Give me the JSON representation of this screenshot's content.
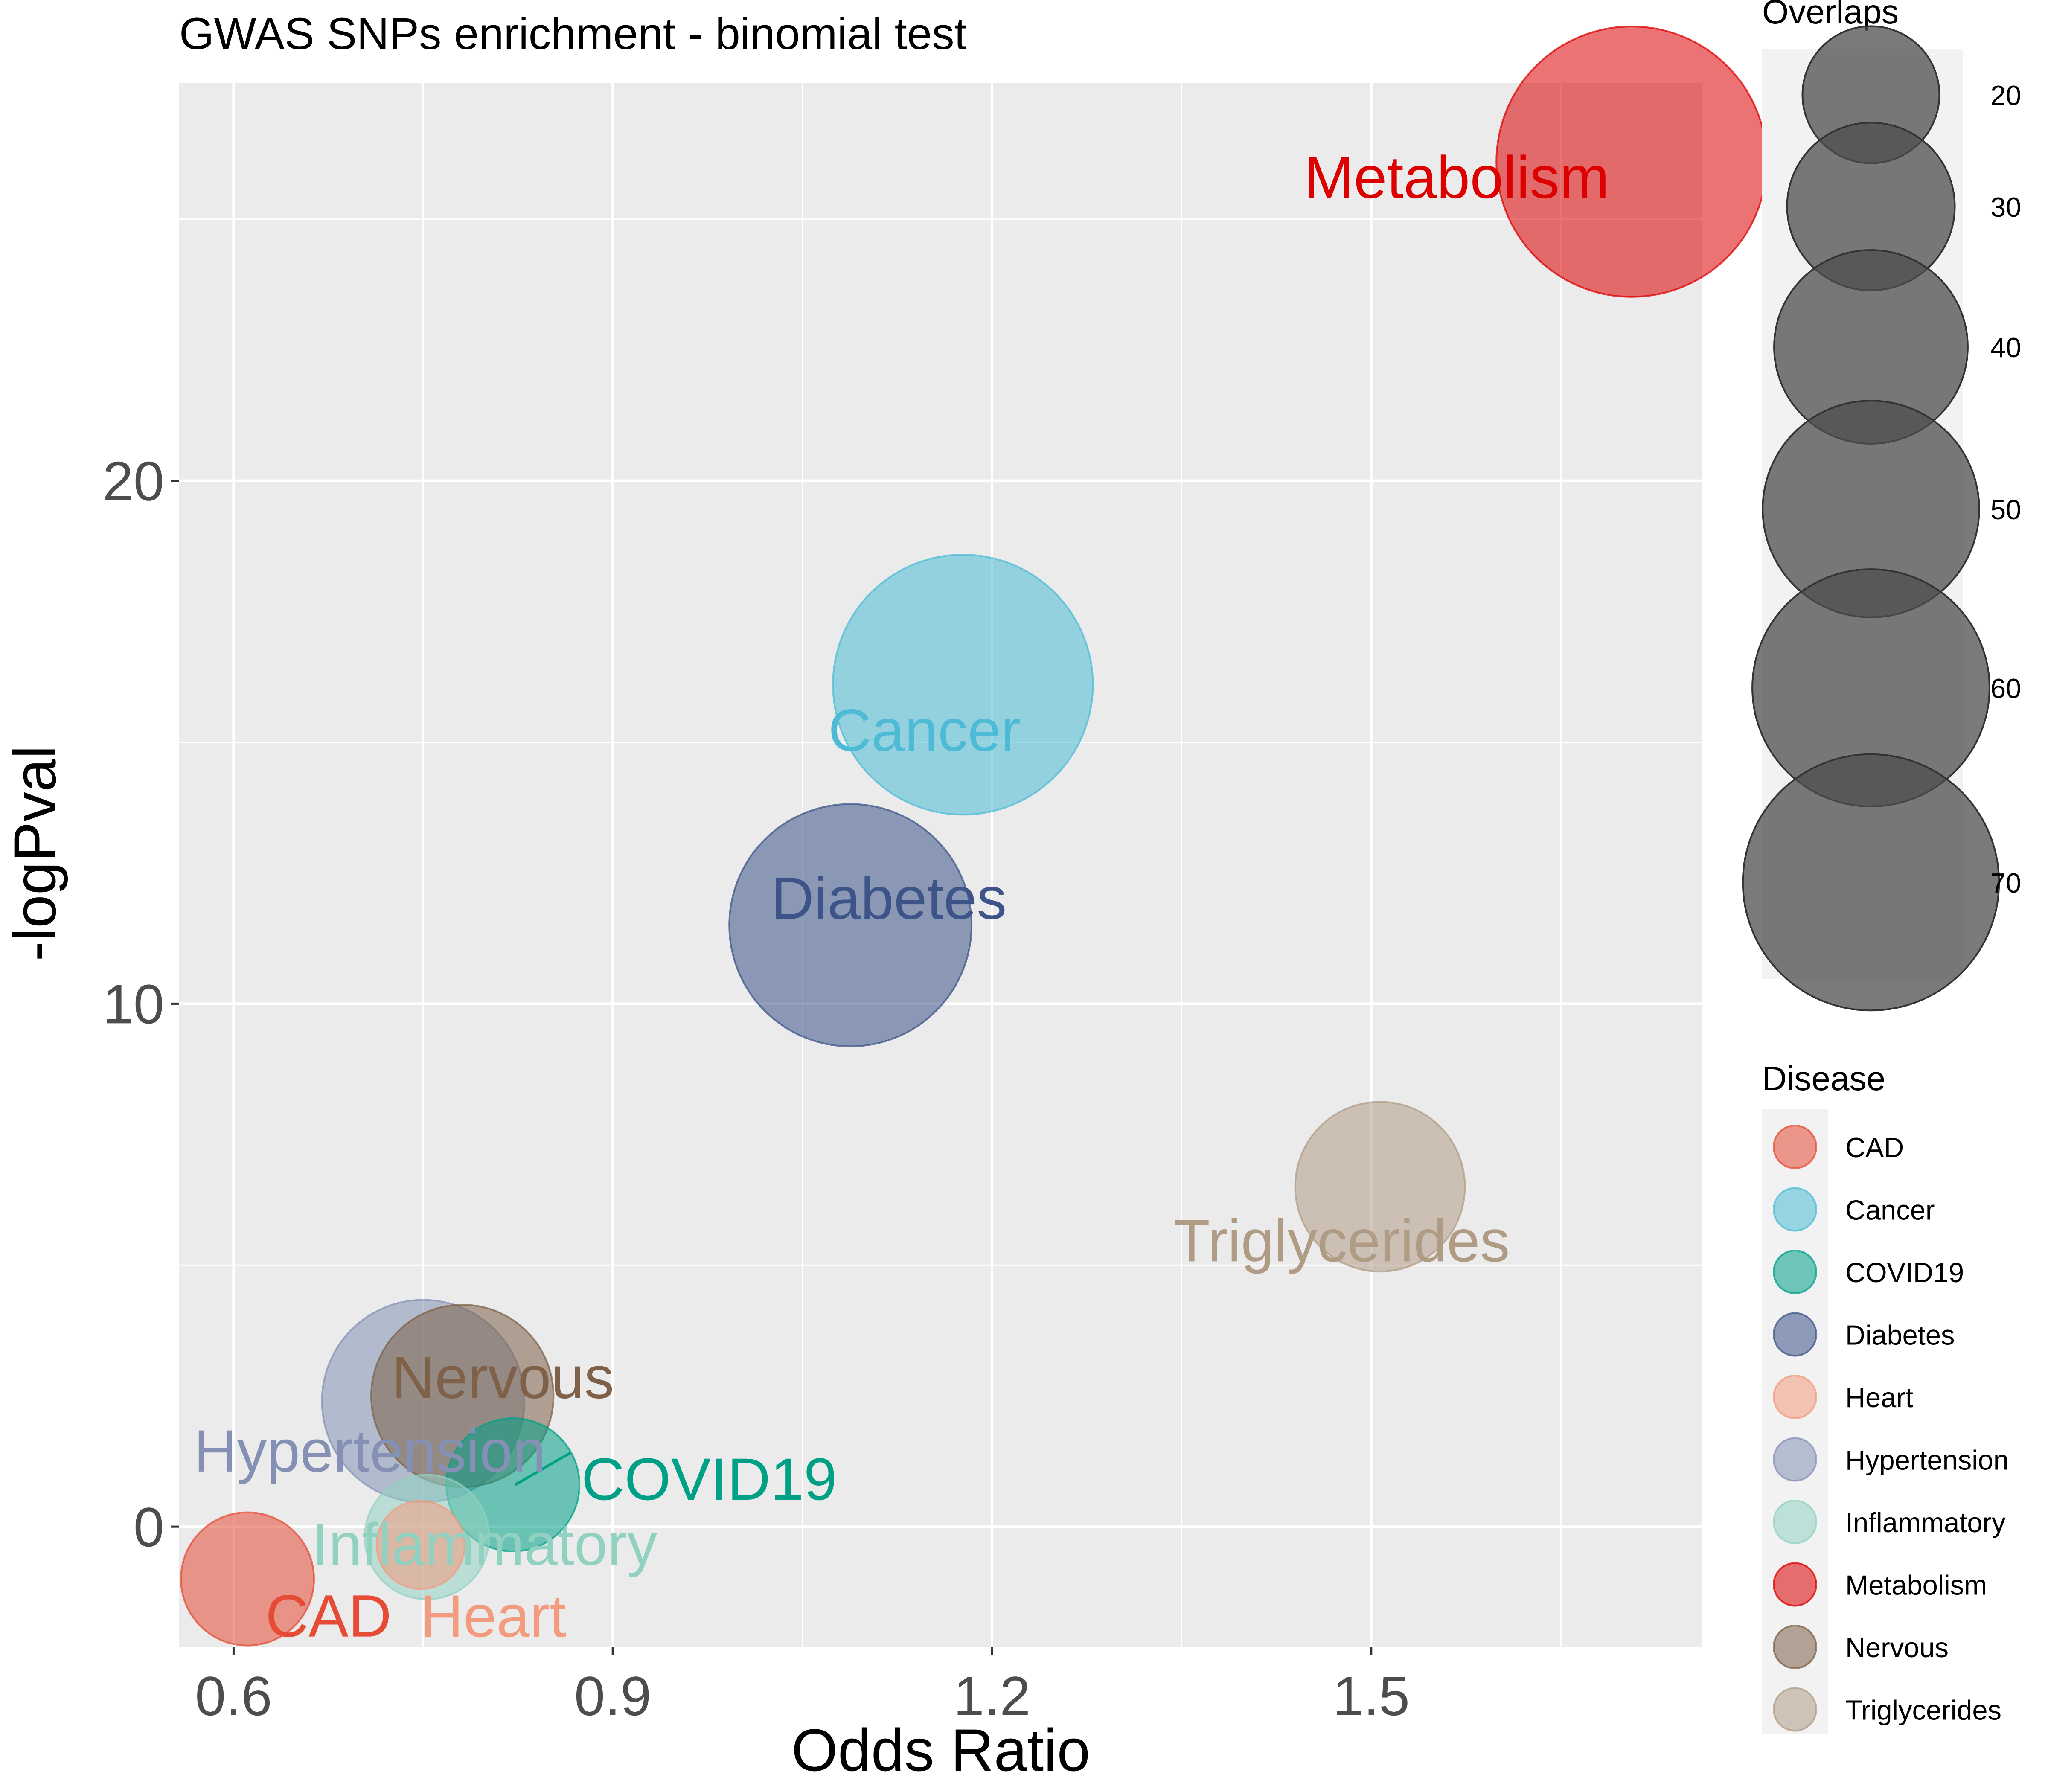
{
  "chart_data": {
    "type": "scatter",
    "title": "GWAS SNPs enrichment - binomial test",
    "xlabel": "Odds Ratio",
    "ylabel": "-logPval",
    "xlim": [
      0.557,
      1.762
    ],
    "ylim": [
      -2.3,
      27.6
    ],
    "x_ticks": [
      0.6,
      0.9,
      1.2,
      1.5
    ],
    "x_tick_labels": [
      "0.6",
      "0.9",
      "1.2",
      "1.5"
    ],
    "y_ticks": [
      0,
      10,
      20
    ],
    "y_tick_labels": [
      "0",
      "10",
      "20"
    ],
    "grid": true,
    "size_legend": {
      "title": "Overlaps",
      "sizes": [
        20,
        30,
        40,
        50,
        60,
        70
      ],
      "labels": [
        "20",
        "30",
        "40",
        "50",
        "60",
        "70"
      ]
    },
    "color_legend": {
      "title": "Disease",
      "placement": "right"
    },
    "series": [
      {
        "name": "CAD",
        "x": 0.611,
        "y": -1.0,
        "overlaps": 16,
        "color": "#E64B35",
        "label": "CAD"
      },
      {
        "name": "Cancer",
        "x": 1.177,
        "y": 16.1,
        "overlaps": 61,
        "color": "#4DBBD5",
        "label": "Cancer"
      },
      {
        "name": "COVID19",
        "x": 0.821,
        "y": 0.8,
        "overlaps": 16,
        "color": "#00A087",
        "label": "COVID19"
      },
      {
        "name": "Diabetes",
        "x": 1.088,
        "y": 11.5,
        "overlaps": 53,
        "color": "#3C5488",
        "label": "Diabetes"
      },
      {
        "name": "Heart",
        "x": 0.748,
        "y": -0.35,
        "overlaps": 7,
        "color": "#F39B7F",
        "label": "Heart"
      },
      {
        "name": "Hypertension",
        "x": 0.75,
        "y": 2.4,
        "overlaps": 37,
        "color": "#8491B4",
        "label": "Hypertension"
      },
      {
        "name": "Inflammatory",
        "x": 0.753,
        "y": -0.2,
        "overlaps": 14,
        "color": "#91D1C2",
        "label": "Inflammatory"
      },
      {
        "name": "Metabolism",
        "x": 1.706,
        "y": 26.1,
        "overlaps": 66,
        "color": "#DC0000",
        "label": "Metabolism"
      },
      {
        "name": "Nervous",
        "x": 0.781,
        "y": 2.5,
        "overlaps": 30,
        "color": "#7E6148",
        "label": "Nervous"
      },
      {
        "name": "Triglycerides",
        "x": 1.507,
        "y": 6.5,
        "overlaps": 26,
        "color": "#B09C85",
        "label": "Triglycerides"
      }
    ]
  }
}
